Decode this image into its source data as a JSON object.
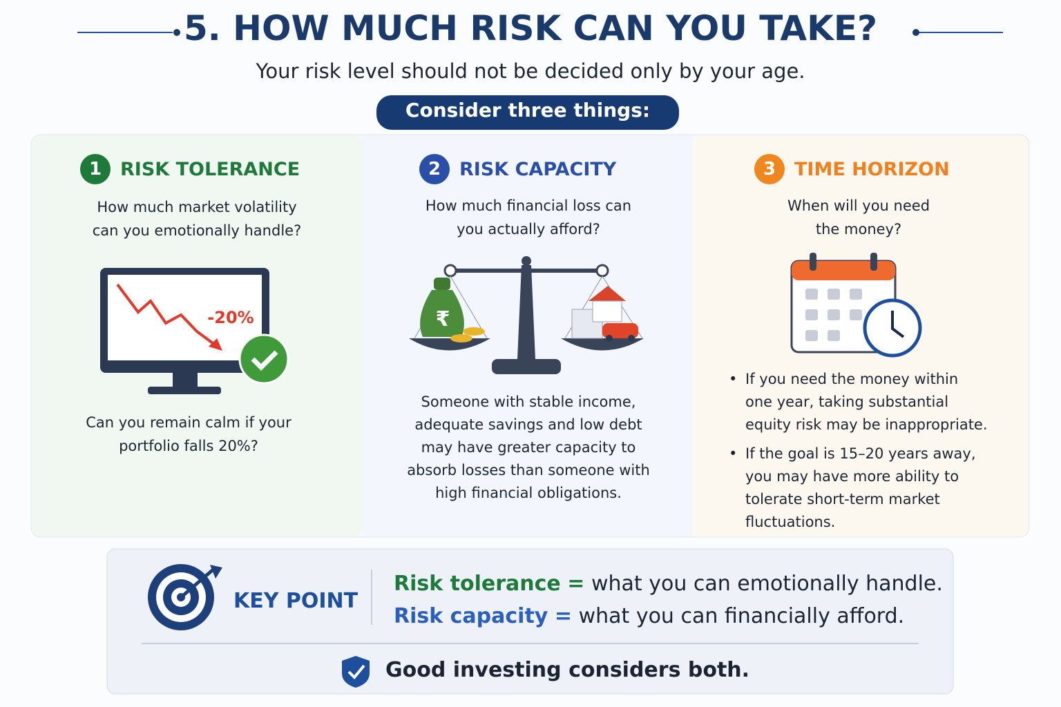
{
  "header": {
    "title": "5. HOW MUCH RISK CAN YOU TAKE?",
    "subtitle": "Your risk level should not be decided only by your age.",
    "badge": "Consider three things:"
  },
  "columns": [
    {
      "number": "1",
      "title": "RISK TOLERANCE",
      "question": [
        "How much market volatility",
        "can you emotionally handle?"
      ],
      "illustration_label": "-20%",
      "text": [
        "Can you remain calm if your",
        "portfolio falls 20%?"
      ]
    },
    {
      "number": "2",
      "title": "RISK CAPACITY",
      "question": [
        "How much financial loss can",
        "you actually afford?"
      ],
      "illustration_label": "₹",
      "text": [
        "Someone with stable income,",
        "adequate savings and low debt",
        "may have greater capacity to",
        "absorb losses than someone with",
        "high financial obligations."
      ]
    },
    {
      "number": "3",
      "title": "TIME HORIZON",
      "question": [
        "When will you need",
        "the money?"
      ],
      "bullets": [
        [
          "If you need the money within",
          "one year, taking substantial",
          "equity risk may be inappropriate."
        ],
        [
          "If the goal is 15–20 years away,",
          "you may have more ability to",
          "tolerate short-term market",
          "fluctuations."
        ]
      ]
    }
  ],
  "key_point": {
    "label": "KEY POINT",
    "lines": [
      {
        "term": "Risk tolerance",
        "sep": "=",
        "definition": "what you can emotionally handle."
      },
      {
        "term": "Risk capacity",
        "sep": "=",
        "definition": "what you can financially afford."
      }
    ],
    "footer": "Good investing considers both."
  }
}
